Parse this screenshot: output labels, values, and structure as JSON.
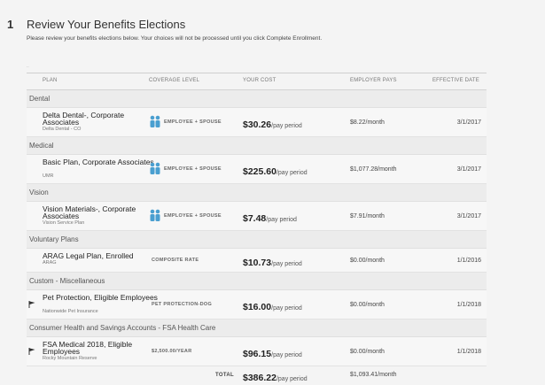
{
  "step": "1",
  "title": "Review Your Benefits Elections",
  "subtitle": "Please review your benefits elections below. Your choices will not be processed until you click Complete Enrollment.",
  "columns": {
    "plan": "PLAN",
    "coverage": "COVERAGE LEVEL",
    "cost": "YOUR COST",
    "employer": "EMPLOYER PAYS",
    "effective": "EFFECTIVE DATE"
  },
  "sections": [
    {
      "name": "Dental"
    },
    {
      "name": "Medical"
    },
    {
      "name": "Vision"
    },
    {
      "name": "Voluntary Plans"
    },
    {
      "name": "Custom - Miscellaneous"
    },
    {
      "name": "Consumer Health and Savings Accounts - FSA Health Care"
    }
  ],
  "rows": [
    {
      "plan": "Delta Dental-, Corporate Associates",
      "carrier": "Delta Dental - CO",
      "coverage": "EMPLOYEE + SPOUSE",
      "cost": "$30.26",
      "cost_unit": "/pay period",
      "employer": "$8.22/month",
      "effective": "3/1/2017",
      "icon": "family-icon"
    },
    {
      "plan": "Basic Plan, Corporate Associates",
      "carrier": "UMR",
      "coverage": "EMPLOYEE + SPOUSE",
      "cost": "$225.60",
      "cost_unit": "/pay period",
      "employer": "$1,077.28/month",
      "effective": "3/1/2017",
      "icon": "family-icon"
    },
    {
      "plan": "Vision Materials-, Corporate Associates",
      "carrier": "Vision Service Plan",
      "coverage": "EMPLOYEE + SPOUSE",
      "cost": "$7.48",
      "cost_unit": "/pay period",
      "employer": "$7.91/month",
      "effective": "3/1/2017",
      "icon": "family-icon"
    },
    {
      "plan": "ARAG Legal Plan, Enrolled",
      "carrier": "ARAG",
      "coverage": "COMPOSITE RATE",
      "cost": "$10.73",
      "cost_unit": "/pay period",
      "employer": "$0.00/month",
      "effective": "1/1/2016"
    },
    {
      "plan": "Pet Protection, Eligible Employees",
      "carrier": "Nationwide Pet Insurance",
      "coverage": "PET PROTECTION-DOG",
      "cost": "$16.00",
      "cost_unit": "/pay period",
      "employer": "$0.00/month",
      "effective": "1/1/2018",
      "icon": "flag-icon"
    },
    {
      "plan": "FSA Medical 2018, Eligible Employees",
      "carrier": "Rocky Mountain Reserve",
      "coverage": "$2,500.00/YEAR",
      "cost": "$96.15",
      "cost_unit": "/pay period",
      "employer": "$0.00/month",
      "effective": "1/1/2018",
      "icon": "flag-icon"
    }
  ],
  "total": {
    "label": "TOTAL",
    "cost": "$386.22",
    "cost_unit": "/pay period",
    "employer": "$1,093.41/month"
  },
  "colors": {
    "icon_blue": "#4a9fd0",
    "flag": "#333333"
  }
}
